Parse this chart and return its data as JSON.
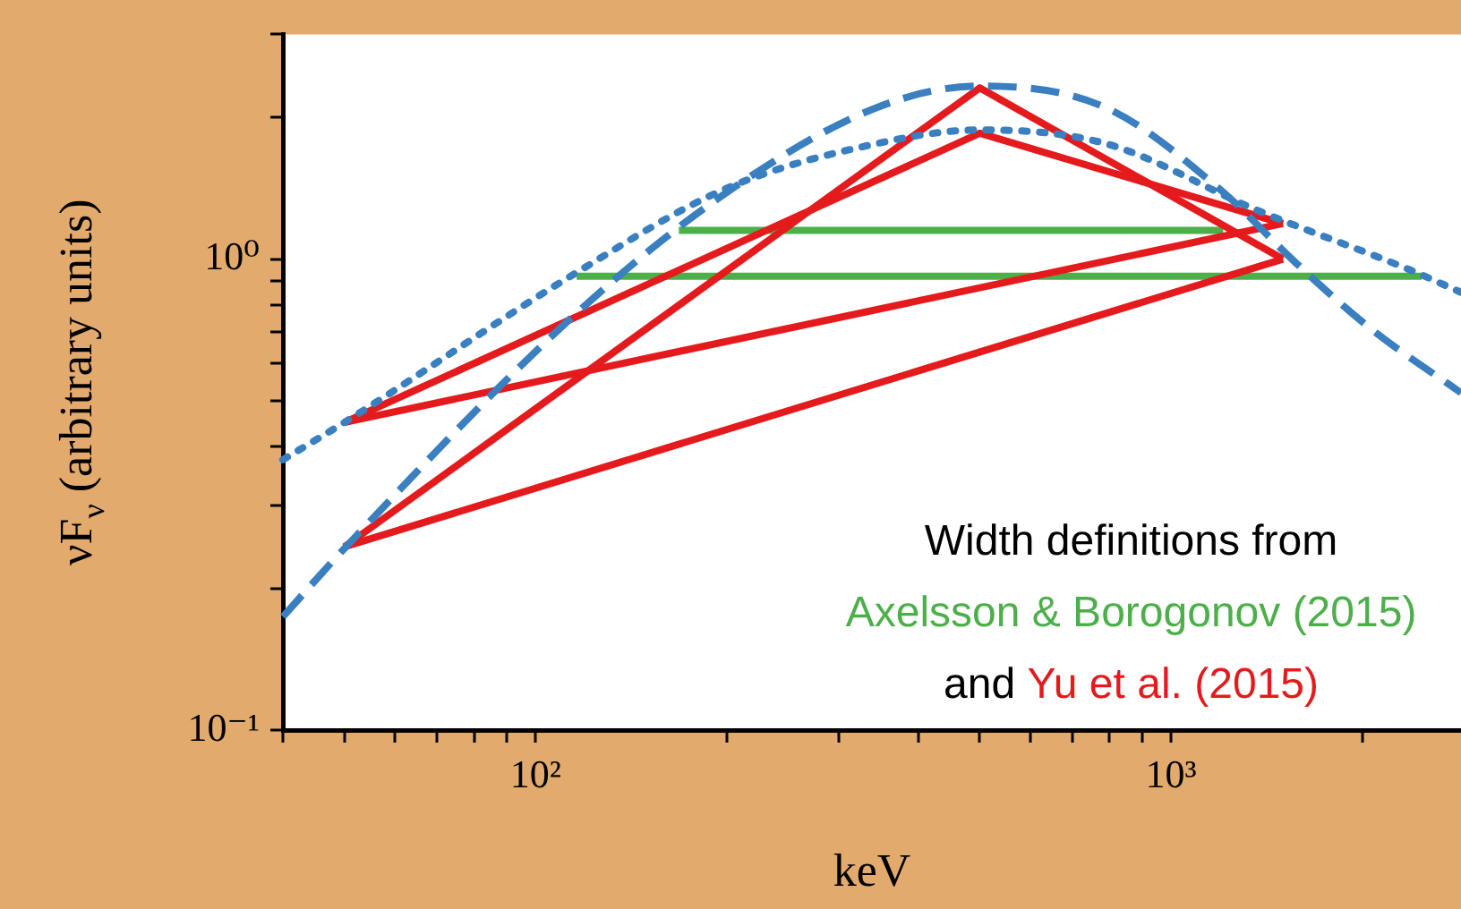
{
  "chart_data": {
    "type": "line",
    "xlabel": "keV",
    "ylabel": "νF$_{ν}$ (arbitrary units)",
    "log": "xy",
    "grid": false,
    "legend": false,
    "marker": "none",
    "xlim": [
      40,
      2860
    ],
    "ylim": [
      0.1,
      3
    ],
    "xticks": [
      {
        "value": 40,
        "label": null
      },
      {
        "value": 50,
        "label": null
      },
      {
        "value": 60,
        "label": null
      },
      {
        "value": 70,
        "label": null
      },
      {
        "value": 80,
        "label": null
      },
      {
        "value": 90,
        "label": null
      },
      {
        "value": 100,
        "label": "10²"
      },
      {
        "value": 200,
        "label": null
      },
      {
        "value": 300,
        "label": null
      },
      {
        "value": 400,
        "label": null
      },
      {
        "value": 500,
        "label": null
      },
      {
        "value": 600,
        "label": null
      },
      {
        "value": 700,
        "label": null
      },
      {
        "value": 800,
        "label": null
      },
      {
        "value": 900,
        "label": null
      },
      {
        "value": 1000,
        "label": "10³"
      },
      {
        "value": 2000,
        "label": null
      }
    ],
    "yticks": [
      {
        "value": 0.1,
        "label": "10⁻¹"
      },
      {
        "value": 0.2,
        "label": null
      },
      {
        "value": 0.3,
        "label": null
      },
      {
        "value": 0.4,
        "label": null
      },
      {
        "value": 0.5,
        "label": null
      },
      {
        "value": 0.6,
        "label": null
      },
      {
        "value": 0.7,
        "label": null
      },
      {
        "value": 0.8,
        "label": null
      },
      {
        "value": 0.9,
        "label": null
      },
      {
        "value": 1,
        "label": "10⁰"
      },
      {
        "value": 2,
        "label": null
      },
      {
        "value": 3,
        "label": null
      }
    ],
    "series": [
      {
        "color": "#3a7fc0",
        "line_style": "dashed",
        "x": [
          40,
          50,
          115,
          199,
          345,
          500,
          787,
          1191,
          1574,
          2066,
          2860
        ],
        "values": [
          0.174,
          0.243,
          0.76,
          1.38,
          2.1,
          2.33,
          2.1,
          1.41,
          0.98,
          0.71,
          0.52
        ]
      },
      {
        "color": "#3a7fc0",
        "line_style": "dotted",
        "x": [
          40,
          50,
          115,
          199,
          345,
          500,
          787,
          1365,
          2370,
          2860
        ],
        "values": [
          0.375,
          0.45,
          0.93,
          1.41,
          1.76,
          1.88,
          1.76,
          1.27,
          0.95,
          0.85
        ]
      },
      {
        "color": "#e41a1c",
        "line_style": "solid",
        "x": [
          50,
          500,
          1500
        ],
        "values": [
          0.45,
          1.85,
          1.19
        ]
      },
      {
        "color": "#e41a1c",
        "line_style": "solid",
        "x": [
          50,
          1500
        ],
        "values": [
          0.45,
          1.19
        ]
      },
      {
        "color": "#e41a1c",
        "line_style": "solid",
        "x": [
          50,
          500,
          1500
        ],
        "values": [
          0.245,
          2.31,
          1.0
        ]
      },
      {
        "color": "#e41a1c",
        "line_style": "solid",
        "x": [
          50,
          1500
        ],
        "values": [
          0.245,
          1.0
        ]
      },
      {
        "color": "#4daf4a",
        "line_style": "solid",
        "x": [
          168,
          1208
        ],
        "values": [
          1.15,
          1.15
        ]
      },
      {
        "color": "#4daf4a",
        "line_style": "solid",
        "x": [
          116,
          2480
        ],
        "values": [
          0.92,
          0.92
        ]
      }
    ],
    "annotations": [
      "Width definitions from",
      "Axelsson & Borogonov (2015)",
      "and ",
      "Yu et al. (2015)"
    ]
  }
}
